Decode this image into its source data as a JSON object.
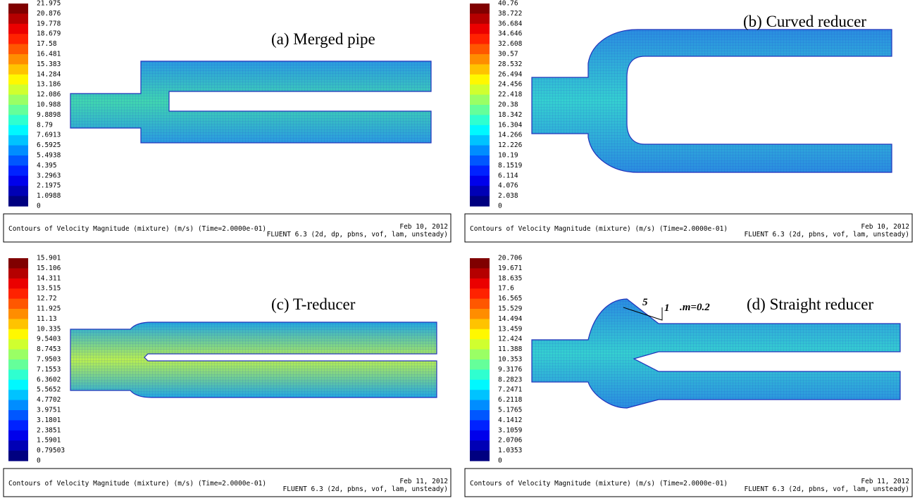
{
  "panels": [
    {
      "title": "(a) Merged pipe",
      "colorbar": [
        "21.975",
        "20.876",
        "19.778",
        "18.679",
        "17.58",
        "16.481",
        "15.383",
        "14.284",
        "13.186",
        "12.086",
        "10.988",
        "9.8898",
        "8.79",
        "7.6913",
        "6.5925",
        "5.4938",
        "4.395",
        "3.2963",
        "2.1975",
        "1.0988",
        "0"
      ],
      "footer": {
        "caption": "Contours of Velocity Magnitude (mixture)  (m/s)  (Time=2.0000e-01)",
        "date": "Feb 10, 2012",
        "solver": "FLUENT 6.3 (2d, dp, pbns, vof, lam, unsteady)"
      }
    },
    {
      "title": "(b) Curved reducer",
      "colorbar": [
        "40.76",
        "38.722",
        "36.684",
        "34.646",
        "32.608",
        "30.57",
        "28.532",
        "26.494",
        "24.456",
        "22.418",
        "20.38",
        "18.342",
        "16.304",
        "14.266",
        "12.226",
        "10.19",
        "8.1519",
        "6.114",
        "4.076",
        "2.038",
        "0"
      ],
      "footer": {
        "caption": "Contours of Velocity Magnitude (mixture)  (m/s)  (Time=2.0000e-01)",
        "date": "Feb 10, 2012",
        "solver": "FLUENT 6.3 (2d, pbns, vof, lam, unsteady)"
      }
    },
    {
      "title": "(c) T-reducer",
      "colorbar": [
        "15.901",
        "15.106",
        "14.311",
        "13.515",
        "12.72",
        "11.925",
        "11.13",
        "10.335",
        "9.5403",
        "8.7453",
        "7.9503",
        "7.1553",
        "6.3602",
        "5.5652",
        "4.7702",
        "3.9751",
        "3.1801",
        "2.3851",
        "1.5901",
        "0.79503",
        "0"
      ],
      "footer": {
        "caption": "Contours of Velocity Magnitude (mixture)  (m/s)  (Time=2.0000e-01)",
        "date": "Feb 11, 2012",
        "solver": "FLUENT 6.3 (2d, pbns, vof, lam, unsteady)"
      }
    },
    {
      "title": "(d) Straight reducer",
      "colorbar": [
        "20.706",
        "19.671",
        "18.635",
        "17.6",
        "16.565",
        "15.529",
        "14.494",
        "13.459",
        "12.424",
        "11.388",
        "10.353",
        "9.3176",
        "8.2823",
        "7.2471",
        "6.2118",
        "5.1765",
        "4.1412",
        "3.1059",
        "2.0706",
        "1.0353",
        "0"
      ],
      "footer": {
        "caption": "Contours of Velocity Magnitude (mixture)  (m/s)  (Time=2.0000e-01)",
        "date": "Feb 11, 2012",
        "solver": "FLUENT 6.3 (2d, pbns, vof, lam, unsteady)"
      },
      "annotation": {
        "run": "5",
        "rise": "1",
        "slope": ".m=0.2"
      }
    }
  ]
}
